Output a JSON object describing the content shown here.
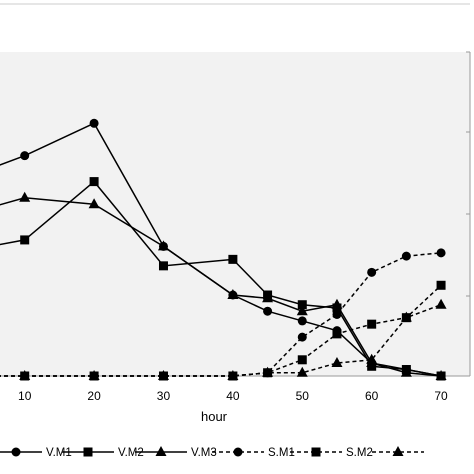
{
  "chart_data": {
    "type": "line",
    "xlabel": "hour",
    "ylabel": "",
    "xticks": [
      10,
      20,
      30,
      40,
      50,
      60,
      70
    ],
    "xlim": [
      5,
      71
    ],
    "ylim": [
      0,
      100
    ],
    "grid": false,
    "legend_position": "bottom",
    "series": [
      {
        "name": "V.M1",
        "style": "solid",
        "marker": "circle",
        "x": [
          5,
          10,
          20,
          30,
          40,
          45,
          50,
          55,
          60,
          65,
          70
        ],
        "y": [
          64,
          68,
          78,
          40,
          25,
          20,
          17,
          14,
          4,
          2,
          0
        ]
      },
      {
        "name": "V.M2",
        "style": "solid",
        "marker": "square",
        "x": [
          5,
          10,
          20,
          30,
          40,
          45,
          50,
          55,
          60,
          65,
          70
        ],
        "y": [
          40,
          42,
          60,
          34,
          36,
          25,
          22,
          21,
          3,
          2,
          0
        ]
      },
      {
        "name": "V.M3",
        "style": "solid",
        "marker": "triangle",
        "x": [
          5,
          10,
          20,
          30,
          40,
          45,
          50,
          55,
          60,
          65,
          70
        ],
        "y": [
          52,
          55,
          53,
          40,
          25,
          24,
          20,
          22,
          4,
          1,
          0
        ]
      },
      {
        "name": "S.M1",
        "style": "dashed",
        "marker": "circle",
        "x": [
          5,
          10,
          20,
          30,
          40,
          45,
          50,
          55,
          60,
          65,
          70
        ],
        "y": [
          0,
          0,
          0,
          0,
          0,
          1,
          12,
          19,
          32,
          37,
          38
        ]
      },
      {
        "name": "S.M2",
        "style": "dashed",
        "marker": "square",
        "x": [
          5,
          10,
          20,
          30,
          40,
          45,
          50,
          55,
          60,
          65,
          70
        ],
        "y": [
          0,
          0,
          0,
          0,
          0,
          1,
          5,
          13,
          16,
          18,
          28
        ]
      },
      {
        "name": "",
        "style": "dashed",
        "marker": "triangle",
        "x": [
          5,
          10,
          20,
          30,
          40,
          45,
          50,
          55,
          60,
          65,
          70
        ],
        "y": [
          0,
          0,
          0,
          0,
          0,
          1,
          1,
          4,
          5,
          18,
          22
        ]
      }
    ]
  }
}
